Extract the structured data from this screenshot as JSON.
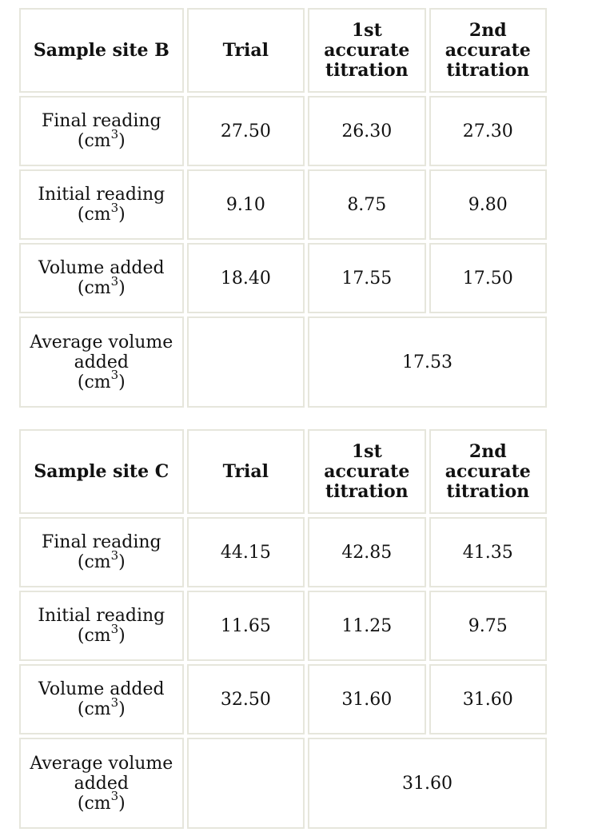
{
  "tables": [
    {
      "header": {
        "label": "Sample site B",
        "columns": [
          "Trial",
          "1st accurate titration",
          "2nd accurate titration"
        ]
      },
      "rows": [
        {
          "label": "Final reading",
          "unit_base": "(cm",
          "unit_exp": "3",
          "unit_end": ")",
          "values": [
            "27.50",
            "26.30",
            "27.30"
          ]
        },
        {
          "label": "Initial reading",
          "unit_base": "(cm",
          "unit_exp": "3",
          "unit_end": ")",
          "values": [
            "9.10",
            "8.75",
            "9.80"
          ]
        },
        {
          "label": "Volume added",
          "unit_base": "(cm",
          "unit_exp": "3",
          "unit_end": ")",
          "values": [
            "18.40",
            "17.55",
            "17.50"
          ]
        }
      ],
      "average": {
        "label": "Average volume added",
        "unit_base": "(cm",
        "unit_exp": "3",
        "unit_end": ")",
        "trial": "",
        "value": "17.53"
      }
    },
    {
      "header": {
        "label": "Sample site C",
        "columns": [
          "Trial",
          "1st accurate titration",
          "2nd accurate titration"
        ]
      },
      "rows": [
        {
          "label": "Final reading",
          "unit_base": "(cm",
          "unit_exp": "3",
          "unit_end": ")",
          "values": [
            "44.15",
            "42.85",
            "41.35"
          ]
        },
        {
          "label": "Initial reading",
          "unit_base": "(cm",
          "unit_exp": "3",
          "unit_end": ")",
          "values": [
            "11.65",
            "11.25",
            "9.75"
          ]
        },
        {
          "label": "Volume added",
          "unit_base": "(cm",
          "unit_exp": "3",
          "unit_end": ")",
          "values": [
            "32.50",
            "31.60",
            "31.60"
          ]
        }
      ],
      "average": {
        "label": "Average volume added",
        "unit_base": "(cm",
        "unit_exp": "3",
        "unit_end": ")",
        "trial": "",
        "value": "31.60"
      }
    }
  ]
}
